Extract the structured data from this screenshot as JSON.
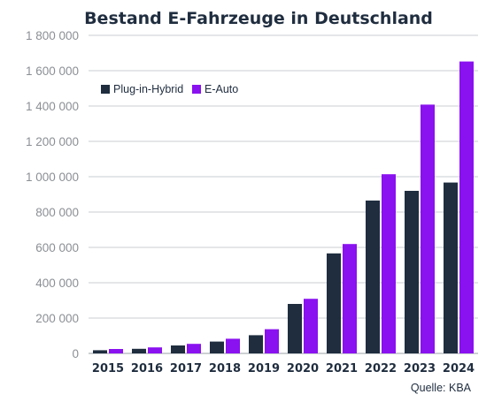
{
  "chart_data": {
    "type": "bar",
    "title": "Bestand E-Fahrzeuge in Deutschland",
    "categories": [
      "2015",
      "2016",
      "2017",
      "2018",
      "2019",
      "2020",
      "2021",
      "2022",
      "2023",
      "2024"
    ],
    "series": [
      {
        "name": "Plug-in-Hybrid",
        "color": "#1f2d3f",
        "values": [
          18000,
          26000,
          45000,
          67000,
          103000,
          280000,
          566000,
          865000,
          920000,
          967000
        ]
      },
      {
        "name": "E-Auto",
        "color": "#8a11f0",
        "values": [
          25000,
          34000,
          54000,
          83000,
          137000,
          309000,
          619000,
          1014000,
          1408000,
          1652000
        ]
      }
    ],
    "ylim": [
      0,
      1800000
    ],
    "yticks": [
      0,
      200000,
      400000,
      600000,
      800000,
      1000000,
      1200000,
      1400000,
      1600000,
      1800000
    ],
    "ytick_labels": [
      "0",
      "200 000",
      "400 000",
      "600 000",
      "800 000",
      "1 000 000",
      "1 200 000",
      "1 400 000",
      "1 600 000",
      "1 800 000"
    ],
    "grid": true,
    "legend_position": "top-left"
  },
  "source": "Quelle: KBA"
}
